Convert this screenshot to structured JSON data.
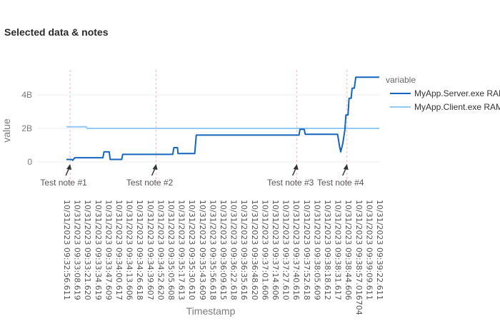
{
  "chart_data": {
    "type": "line",
    "title": "Selected data & notes",
    "xlabel": "Timestamp",
    "ylabel": "value",
    "yticks": [
      {
        "value": 0,
        "label": "0"
      },
      {
        "value": 2000000000,
        "label": "2B"
      },
      {
        "value": 4000000000,
        "label": "4B"
      }
    ],
    "ylim": [
      -1000000000,
      5500000000
    ],
    "grid": true,
    "legend": {
      "title": "variable",
      "placement": "right"
    },
    "categories": [
      "10/31/2023 09:32:56.611",
      "10/31/2023 09:33:08.619",
      "10/31/2023 09:33:21.620",
      "10/31/2023 09:33:34.619",
      "10/31/2023 09:33:47.609",
      "10/31/2023 09:34:00.617",
      "10/31/2023 09:34:13.606",
      "10/31/2023 09:34:26.618",
      "10/31/2023 09:34:39.607",
      "10/31/2023 09:34:52.620",
      "10/31/2023 09:35:05.608",
      "10/31/2023 09:35:17.613",
      "10/31/2023 09:35:30.610",
      "10/31/2023 09:35:43.609",
      "10/31/2023 09:35:56.618",
      "10/31/2023 09:36:09.615",
      "10/31/2023 09:36:22.618",
      "10/31/2023 09:36:35.616",
      "10/31/2023 09:36:48.620",
      "10/31/2023 09:37:01.606",
      "10/31/2023 09:37:14.606",
      "10/31/2023 09:37:27.610",
      "10/31/2023 09:37:40.616",
      "10/31/2023 09:37:52.618",
      "10/31/2023 09:38:05.609",
      "10/31/2023 09:38:18.612",
      "10/31/2023 09:38:31.617",
      "10/31/2023 09:38:44.606",
      "10/31/2023 09:38:57.016704",
      "10/31/2023 09:39:09.611",
      "10/31/2023 09:39:22.611"
    ],
    "series": [
      {
        "name": "MyApp.Server.exe RAM",
        "color": "#1565c0",
        "points": [
          [
            0,
            150000000
          ],
          [
            0.5,
            150000000
          ],
          [
            0.6,
            100000000
          ],
          [
            0.8,
            250000000
          ],
          [
            3.5,
            250000000
          ],
          [
            3.6,
            600000000
          ],
          [
            4.1,
            600000000
          ],
          [
            4.2,
            150000000
          ],
          [
            5.3,
            150000000
          ],
          [
            5.4,
            450000000
          ],
          [
            10.2,
            450000000
          ],
          [
            10.3,
            850000000
          ],
          [
            10.65,
            850000000
          ],
          [
            10.7,
            500000000
          ],
          [
            12.3,
            500000000
          ],
          [
            12.45,
            1600000000
          ],
          [
            22.3,
            1600000000
          ],
          [
            22.4,
            1950000000
          ],
          [
            22.8,
            1950000000
          ],
          [
            22.9,
            1650000000
          ],
          [
            26.0,
            1650000000
          ],
          [
            26.2,
            900000000
          ],
          [
            26.3,
            600000000
          ],
          [
            26.5,
            1100000000
          ],
          [
            26.7,
            1900000000
          ],
          [
            26.8,
            2800000000
          ],
          [
            27.0,
            2800000000
          ],
          [
            27.1,
            3800000000
          ],
          [
            27.3,
            3800000000
          ],
          [
            27.4,
            4400000000
          ],
          [
            27.6,
            4400000000
          ],
          [
            27.75,
            5050000000
          ],
          [
            30.0,
            5050000000
          ]
        ]
      },
      {
        "name": "MyApp.Client.exe RAM",
        "color": "#90caf9",
        "points": [
          [
            0,
            2100000000
          ],
          [
            1.9,
            2100000000
          ],
          [
            2.0,
            2000000000
          ],
          [
            30.0,
            2000000000
          ]
        ]
      }
    ],
    "annotations": [
      {
        "text": "Test note #1",
        "x": 0.35
      },
      {
        "text": "Test note #2",
        "x": 8.6
      },
      {
        "text": "Test note #3",
        "x": 22.1
      },
      {
        "text": "Test note #4",
        "x": 26.9
      }
    ]
  }
}
